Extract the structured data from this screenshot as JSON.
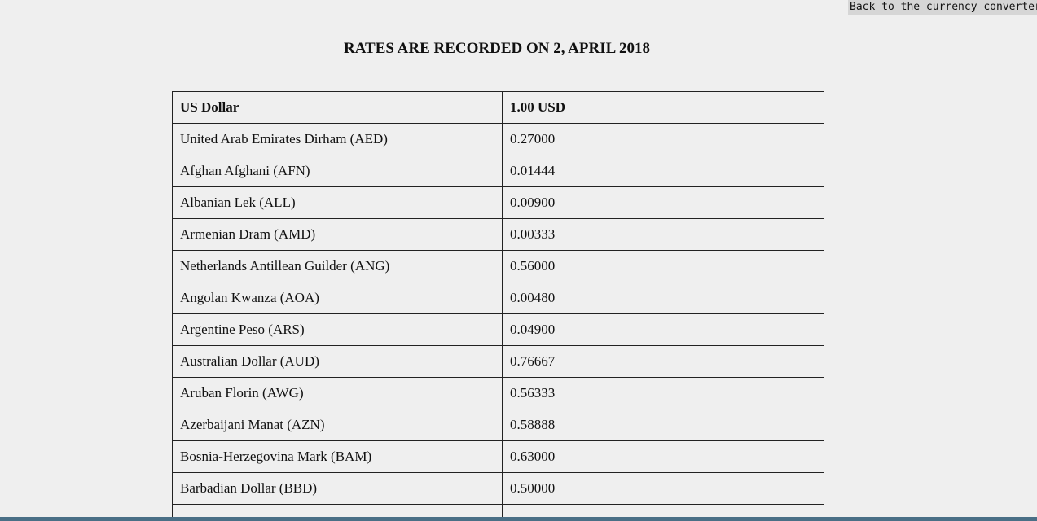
{
  "back_link": {
    "label": "Back to the currency converter"
  },
  "page_title": "RATES ARE RECORDED ON 2, APRIL 2018",
  "table": {
    "header": {
      "currency": "US Dollar",
      "rate": "1.00 USD"
    },
    "rows": [
      {
        "currency": "United Arab Emirates Dirham (AED)",
        "rate": "0.27000"
      },
      {
        "currency": "Afghan Afghani (AFN)",
        "rate": "0.01444"
      },
      {
        "currency": "Albanian Lek (ALL)",
        "rate": "0.00900"
      },
      {
        "currency": "Armenian Dram (AMD)",
        "rate": "0.00333"
      },
      {
        "currency": "Netherlands Antillean Guilder (ANG)",
        "rate": "0.56000"
      },
      {
        "currency": "Angolan Kwanza (AOA)",
        "rate": "0.00480"
      },
      {
        "currency": "Argentine Peso (ARS)",
        "rate": "0.04900"
      },
      {
        "currency": "Australian Dollar (AUD)",
        "rate": "0.76667"
      },
      {
        "currency": "Aruban Florin (AWG)",
        "rate": "0.56333"
      },
      {
        "currency": "Azerbaijani Manat (AZN)",
        "rate": "0.58888"
      },
      {
        "currency": "Bosnia-Herzegovina Mark (BAM)",
        "rate": "0.63000"
      },
      {
        "currency": "Barbadian Dollar (BBD)",
        "rate": "0.50000"
      }
    ]
  }
}
